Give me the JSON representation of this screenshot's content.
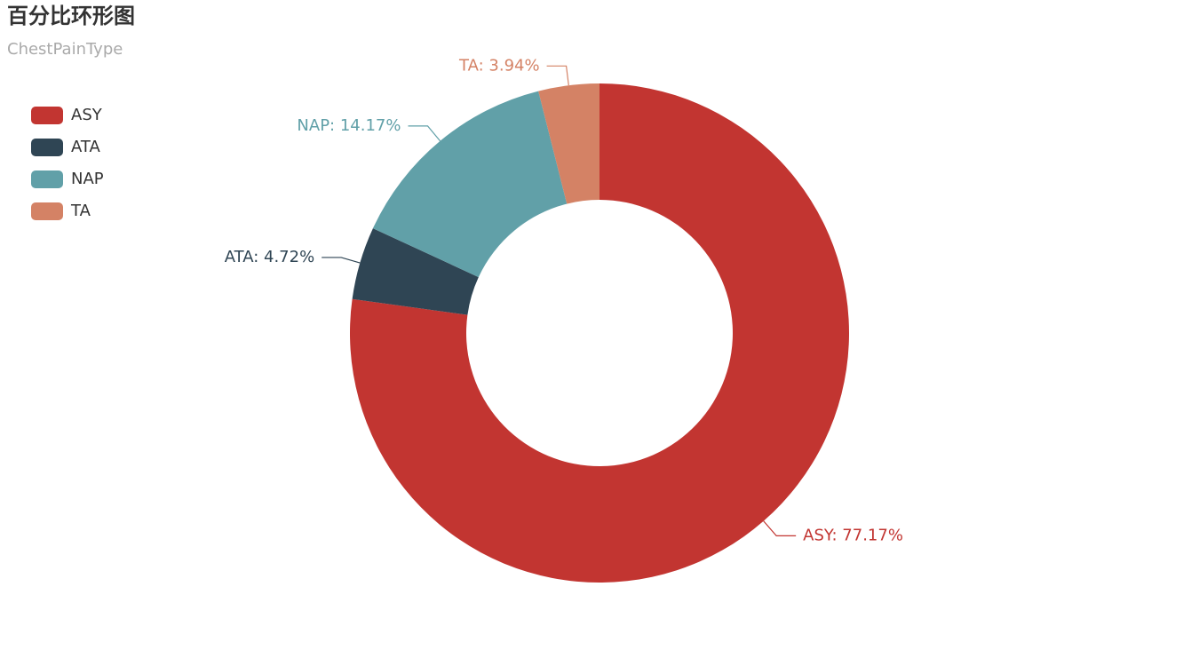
{
  "chart_data": {
    "type": "donut",
    "title": "百分比环形图",
    "subtitle": "ChestPainType",
    "categories": [
      "ASY",
      "ATA",
      "NAP",
      "TA"
    ],
    "values": [
      77.17,
      4.72,
      14.17,
      3.94
    ],
    "value_labels": [
      "ASY: 77.17%",
      "ATA: 4.72%",
      "NAP: 14.17%",
      "TA: 3.94%"
    ],
    "colors": [
      "#c23531",
      "#2f4554",
      "#61a0a8",
      "#d48265"
    ],
    "legend": "top-left"
  }
}
